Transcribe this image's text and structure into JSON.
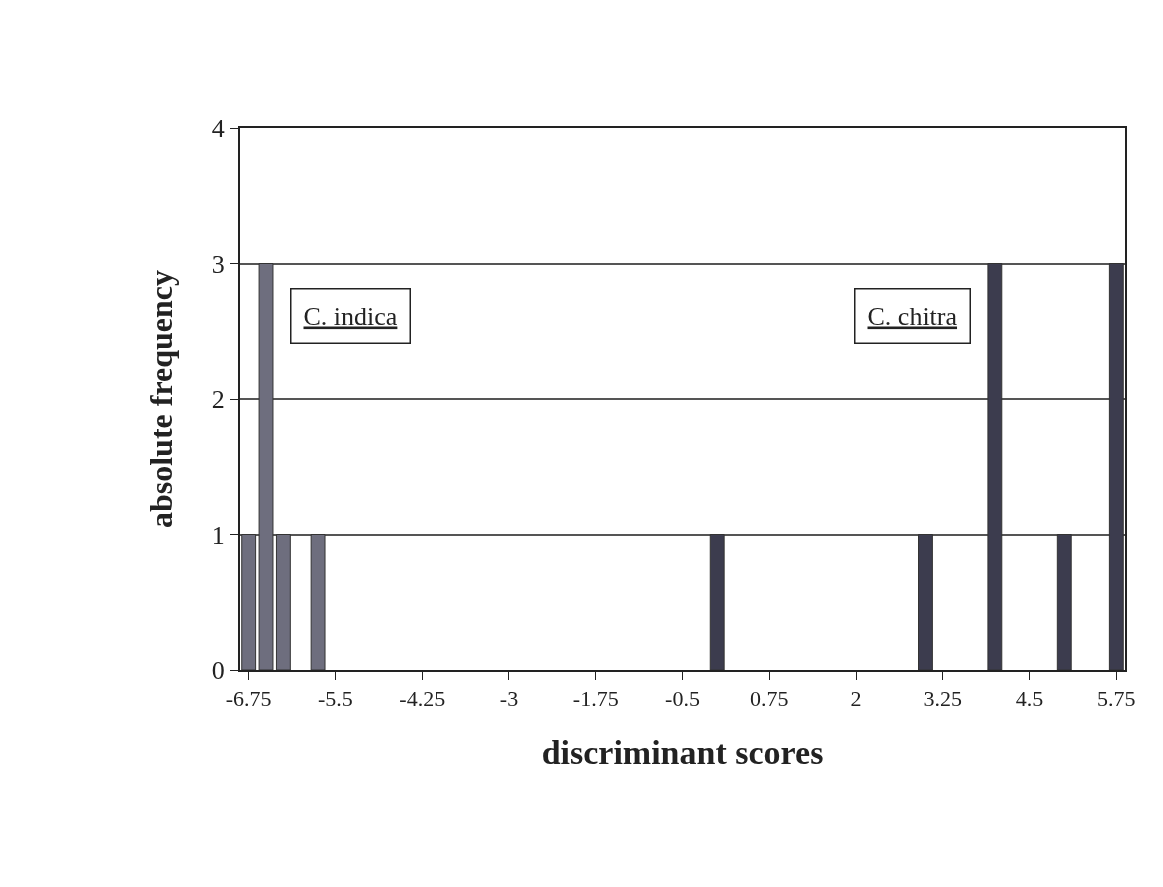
{
  "chart_data": {
    "type": "bar",
    "xlabel": "discriminant scores",
    "ylabel": "absolute frequency",
    "xlim": [
      -6.875,
      5.875
    ],
    "xticks": [
      -6.75,
      -5.5,
      -4.25,
      -3,
      -1.75,
      -0.5,
      0.75,
      2,
      3.25,
      4.5,
      5.75
    ],
    "ylim": [
      0,
      4
    ],
    "yticks": [
      0,
      1,
      2,
      3,
      4
    ],
    "grid": "y",
    "legend": false,
    "series": [
      {
        "name": "C. indica",
        "color": "#6e6e7e",
        "x": [
          -6.75,
          -6.5,
          -6.25,
          -5.75
        ],
        "values": [
          1,
          3,
          1,
          1
        ]
      },
      {
        "name": "C. chitra",
        "color": "#3c3c4e",
        "x": [
          0,
          3,
          4,
          5,
          5.75
        ],
        "values": [
          1,
          1,
          3,
          1,
          3
        ]
      }
    ]
  }
}
